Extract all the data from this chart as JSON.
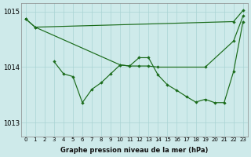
{
  "xlabel": "Graphe pression niveau de la mer (hPa)",
  "background_color": "#ceeaea",
  "grid_color": "#aad4d4",
  "line_color": "#1a6b1a",
  "ylim": [
    1012.75,
    1015.15
  ],
  "yticks": [
    1013,
    1014,
    1015
  ],
  "xlim": [
    -0.5,
    23.5
  ],
  "xticks": [
    0,
    1,
    2,
    3,
    4,
    5,
    6,
    7,
    8,
    9,
    10,
    11,
    12,
    13,
    14,
    15,
    16,
    17,
    18,
    19,
    20,
    21,
    22,
    23
  ],
  "line1_x": [
    0,
    1,
    22,
    23
  ],
  "line1_y": [
    1014.87,
    1014.72,
    1014.82,
    1015.02
  ],
  "line2_x": [
    0,
    1,
    10,
    11,
    12,
    13,
    14,
    19,
    22,
    23
  ],
  "line2_y": [
    1014.87,
    1014.72,
    1014.04,
    1014.02,
    1014.02,
    1014.02,
    1014.0,
    1014.0,
    1014.47,
    1014.92
  ],
  "line3_x": [
    3,
    4,
    5,
    6,
    7,
    8,
    9,
    10,
    11,
    12,
    13,
    14,
    15,
    16,
    17,
    18,
    19,
    20,
    21,
    22,
    23
  ],
  "line3_y": [
    1014.1,
    1013.88,
    1013.83,
    1013.36,
    1013.6,
    1013.72,
    1013.88,
    1014.04,
    1014.02,
    1014.17,
    1014.17,
    1013.86,
    1013.68,
    1013.58,
    1013.47,
    1013.37,
    1013.42,
    1013.36,
    1013.36,
    1013.92,
    1014.82
  ]
}
